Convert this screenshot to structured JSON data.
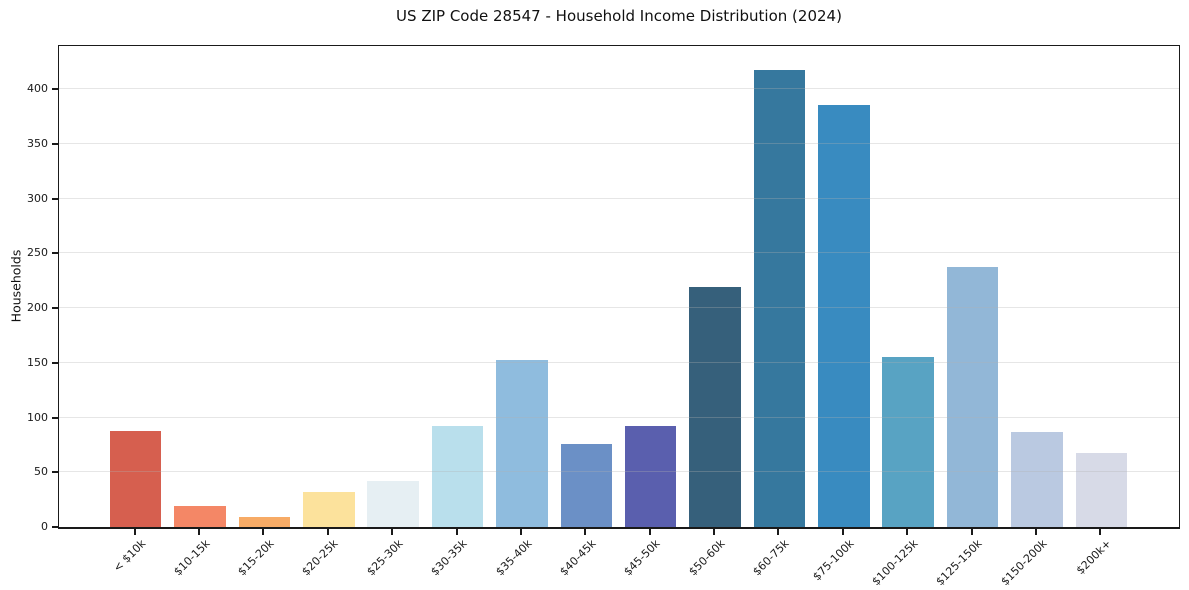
{
  "page": {
    "background_color": "#ffffff",
    "axis_color": "#1a1a1a",
    "grid_color": "rgba(176,176,176,0.32)"
  },
  "chart_data": {
    "type": "bar",
    "title": "US ZIP Code 28547 - Household Income Distribution (2024)",
    "xlabel": "",
    "ylabel": "Households",
    "categories": [
      "< $10k",
      "$10-15k",
      "$15-20k",
      "$20-25k",
      "$25-30k",
      "$30-35k",
      "$35-40k",
      "$40-45k",
      "$45-50k",
      "$50-60k",
      "$60-75k",
      "$75-100k",
      "$100-125k",
      "$125-150k",
      "$150-200k",
      "$200k+"
    ],
    "values": [
      88,
      19,
      9,
      32,
      42,
      92,
      153,
      76,
      92,
      219,
      418,
      386,
      155,
      238,
      87,
      68
    ],
    "bar_colors": [
      "#d65f4f",
      "#f48766",
      "#f7ab66",
      "#fce29c",
      "#e6eff3",
      "#b9dfec",
      "#8fbcde",
      "#6b90c6",
      "#5a5fae",
      "#36607b",
      "#36789e",
      "#398bc0",
      "#58a3c3",
      "#92b7d7",
      "#bac9e1",
      "#d7dae7"
    ],
    "yticks": [
      0,
      50,
      100,
      150,
      200,
      250,
      300,
      350,
      400
    ],
    "ylim": [
      0,
      439
    ],
    "x_tick_rotation": 45,
    "grid": "horizontal, drawn above bars",
    "legend": "none"
  }
}
